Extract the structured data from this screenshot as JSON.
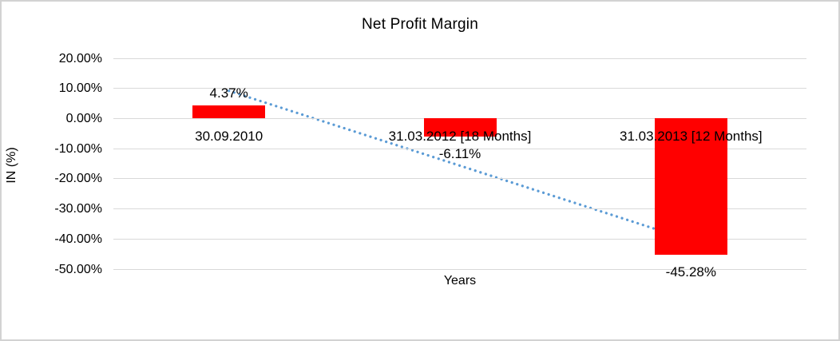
{
  "chart_data": {
    "type": "bar",
    "title": "Net Profit Margin",
    "xlabel": "Years",
    "ylabel": "IN (%)",
    "categories": [
      "30.09.2010",
      "31.03.2012 [18 Months]",
      "31.03.2013 [12 Months]"
    ],
    "values": [
      4.37,
      -6.11,
      -45.28
    ],
    "data_labels": [
      "4.37%",
      "-6.11%",
      "-45.28%"
    ],
    "ylim": [
      -50,
      20
    ],
    "yticks": [
      20,
      10,
      0,
      -10,
      -20,
      -30,
      -40,
      -50
    ],
    "ytick_labels": [
      "20.00%",
      "10.00%",
      "0.00%",
      "-10.00%",
      "-20.00%",
      "-30.00%",
      "-40.00%",
      "-50.00%"
    ],
    "grid": true,
    "legend": false,
    "bar_color": "#FF0000",
    "gridline_color": "#D9D9D9",
    "text_color": "#000000",
    "trendline": {
      "type": "linear",
      "style": "dotted",
      "color": "#5B9BD5",
      "start_value": 9.2,
      "end_value": -40.5
    }
  }
}
